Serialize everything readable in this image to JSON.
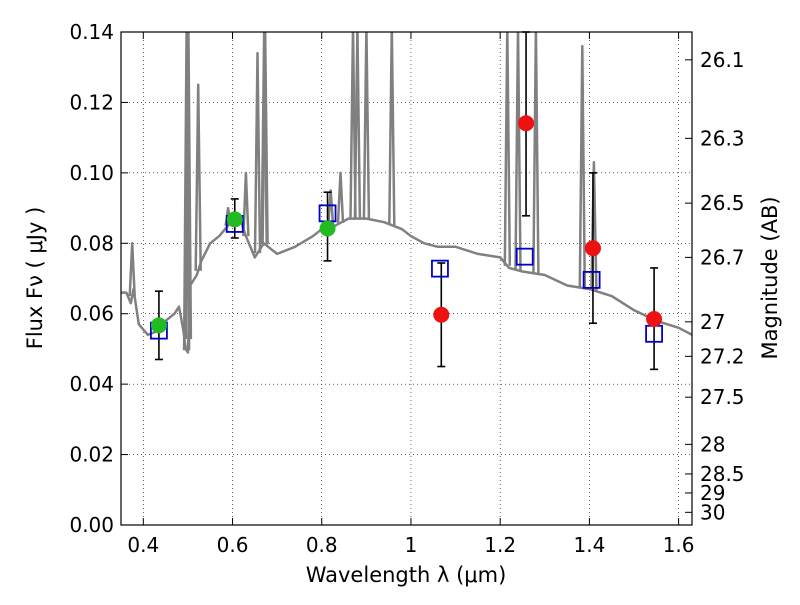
{
  "chart_data": {
    "type": "scatter",
    "xlabel": "Wavelength  λ (μm)",
    "ylabel": "Flux  Fν  ( μJy )",
    "y2label": "Magnitude (AB)",
    "xlim": [
      0.35,
      1.63
    ],
    "ylim": [
      0.0,
      0.14
    ],
    "grid": true,
    "x_ticks": [
      0.4,
      0.6,
      0.8,
      1.0,
      1.2,
      1.4,
      1.6
    ],
    "x_tick_labels": [
      "0.4",
      "0.6",
      "0.8",
      "1",
      "1.2",
      "1.4",
      "1.6"
    ],
    "y_ticks": [
      0.0,
      0.02,
      0.04,
      0.06,
      0.08,
      0.1,
      0.12,
      0.14
    ],
    "y_tick_labels": [
      "0.00",
      "0.02",
      "0.04",
      "0.06",
      "0.08",
      "0.10",
      "0.12",
      "0.14"
    ],
    "y2_ticks": [
      {
        "label": "26.1",
        "flux": 0.1321
      },
      {
        "label": "26.3",
        "flux": 0.1098
      },
      {
        "label": "26.5",
        "flux": 0.0914
      },
      {
        "label": "26.7",
        "flux": 0.076
      },
      {
        "label": "27",
        "flux": 0.0577
      },
      {
        "label": "27.2",
        "flux": 0.0479
      },
      {
        "label": "27.5",
        "flux": 0.0363
      },
      {
        "label": "28",
        "flux": 0.0229
      },
      {
        "label": "28.5",
        "flux": 0.0145
      },
      {
        "label": "29",
        "flux": 0.0091
      },
      {
        "label": "30",
        "flux": 0.0036
      }
    ],
    "series": [
      {
        "kind": "model-spectrum",
        "color": "#808080",
        "x": [
          0.35,
          0.362,
          0.372,
          0.378,
          0.39,
          0.41,
          0.43,
          0.45,
          0.47,
          0.48,
          0.49,
          0.495,
          0.5,
          0.505,
          0.51,
          0.52,
          0.53,
          0.55,
          0.57,
          0.59,
          0.6,
          0.62,
          0.63,
          0.65,
          0.66,
          0.67,
          0.7,
          0.74,
          0.78,
          0.8,
          0.83,
          0.86,
          0.9,
          0.94,
          0.96,
          0.98,
          1.0,
          1.03,
          1.06,
          1.1,
          1.15,
          1.2,
          1.22,
          1.25,
          1.3,
          1.35,
          1.4,
          1.45,
          1.5,
          1.55,
          1.6,
          1.63
        ],
        "y": [
          0.066,
          0.066,
          0.063,
          0.067,
          0.057,
          0.054,
          0.055,
          0.058,
          0.06,
          0.062,
          0.055,
          0.05,
          0.049,
          0.068,
          0.069,
          0.071,
          0.075,
          0.08,
          0.082,
          0.085,
          0.087,
          0.086,
          0.082,
          0.076,
          0.078,
          0.08,
          0.077,
          0.079,
          0.082,
          0.084,
          0.085,
          0.087,
          0.087,
          0.086,
          0.085,
          0.084,
          0.082,
          0.08,
          0.079,
          0.079,
          0.077,
          0.076,
          0.073,
          0.072,
          0.071,
          0.068,
          0.067,
          0.065,
          0.061,
          0.058,
          0.056,
          0.054
        ],
        "emission_lines": [
          {
            "x": 0.375,
            "peak": 0.08
          },
          {
            "x": 0.497,
            "peak": 0.14
          },
          {
            "x": 0.501,
            "peak": 0.14
          },
          {
            "x": 0.523,
            "peak": 0.125
          },
          {
            "x": 0.59,
            "peak": 0.09
          },
          {
            "x": 0.63,
            "peak": 0.1
          },
          {
            "x": 0.656,
            "peak": 0.134
          },
          {
            "x": 0.671,
            "peak": 0.14
          },
          {
            "x": 0.673,
            "peak": 0.14
          },
          {
            "x": 0.82,
            "peak": 0.095
          },
          {
            "x": 0.842,
            "peak": 0.1
          },
          {
            "x": 0.87,
            "peak": 0.14
          },
          {
            "x": 0.88,
            "peak": 0.14
          },
          {
            "x": 0.9,
            "peak": 0.14
          },
          {
            "x": 0.957,
            "peak": 0.14
          },
          {
            "x": 1.216,
            "peak": 0.14
          },
          {
            "x": 1.24,
            "peak": 0.14
          },
          {
            "x": 1.28,
            "peak": 0.14
          },
          {
            "x": 1.384,
            "peak": 0.136
          },
          {
            "x": 1.41,
            "peak": 0.103
          }
        ]
      },
      {
        "kind": "model-photometry",
        "marker": "open-square",
        "color": "#0000cc",
        "x": [
          0.435,
          0.605,
          0.813,
          1.065,
          1.255,
          1.405,
          1.545
        ],
        "y": [
          0.0552,
          0.0855,
          0.0885,
          0.0728,
          0.0762,
          0.0696,
          0.0543
        ]
      },
      {
        "kind": "optical-photometry",
        "marker": "filled-circle",
        "color": "#22bb22",
        "x": [
          0.435,
          0.605,
          0.813
        ],
        "y": [
          0.0567,
          0.0868,
          0.0842
        ],
        "yerr_low": [
          0.0097,
          0.0053,
          0.0092
        ],
        "yerr_high": [
          0.0097,
          0.0058,
          0.0103
        ]
      },
      {
        "kind": "near-ir-photometry",
        "marker": "filled-circle",
        "color": "#ee1111",
        "x": [
          1.068,
          1.258,
          1.408,
          1.545
        ],
        "y": [
          0.0597,
          0.1141,
          0.0786,
          0.0585
        ],
        "yerr_low": [
          0.0147,
          0.0263,
          0.0213,
          0.0143
        ],
        "yerr_high": [
          0.0147,
          0.0259,
          0.0214,
          0.0145
        ]
      }
    ]
  }
}
